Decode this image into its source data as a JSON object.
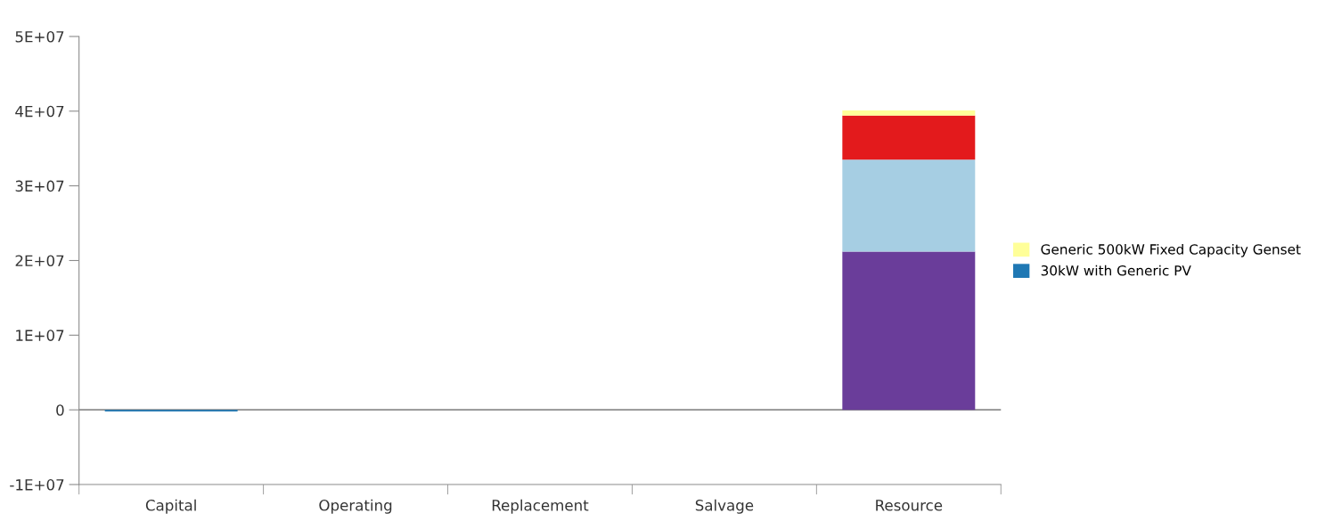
{
  "chart_data": {
    "type": "bar",
    "stacked": true,
    "categories": [
      "Capital",
      "Operating",
      "Replacement",
      "Salvage",
      "Resource"
    ],
    "series": [
      {
        "color": "#6a3d9a",
        "values": [
          null,
          null,
          null,
          null,
          21200000
        ]
      },
      {
        "color": "#a6cee3",
        "values": [
          null,
          null,
          null,
          null,
          12300000
        ]
      },
      {
        "color": "#e31a1c",
        "values": [
          null,
          null,
          null,
          null,
          5900000
        ]
      },
      {
        "name": "Generic 500kW Fixed Capacity Genset",
        "color": "#ffff99",
        "values": [
          null,
          null,
          null,
          null,
          700000
        ]
      },
      {
        "name": "30kW with Generic PV",
        "color": "#1f78b4",
        "values": [
          -200000,
          null,
          null,
          null,
          null
        ]
      }
    ],
    "ylim": [
      -10000000,
      50000000
    ],
    "yticks": [
      {
        "value": -10000000,
        "label": "-1E+07"
      },
      {
        "value": 0,
        "label": "0"
      },
      {
        "value": 10000000,
        "label": "1E+07"
      },
      {
        "value": 20000000,
        "label": "2E+07"
      },
      {
        "value": 30000000,
        "label": "3E+07"
      },
      {
        "value": 40000000,
        "label": "4E+07"
      },
      {
        "value": 50000000,
        "label": "5E+07"
      }
    ],
    "ref_lines": [
      {
        "axis": "y",
        "value": 0,
        "color": "#8c8c8c"
      }
    ],
    "grid": false,
    "legend": "right"
  }
}
